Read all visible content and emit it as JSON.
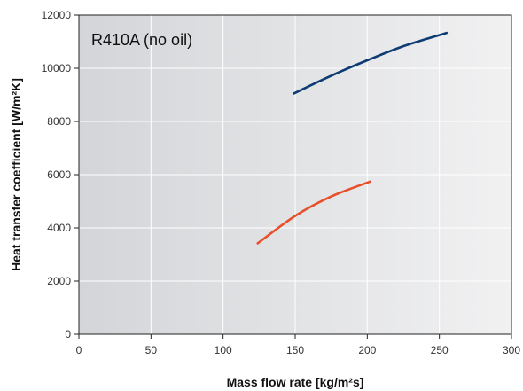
{
  "chart_data": {
    "type": "line",
    "title": "R410A (no oil)",
    "xlabel": "Mass flow rate [kg/m²s]",
    "ylabel": "Heat transfer coefficient [W/m²K]",
    "xlim": [
      0,
      300
    ],
    "ylim": [
      0,
      12000
    ],
    "xticks": [
      0,
      50,
      100,
      150,
      200,
      250,
      300
    ],
    "yticks": [
      0,
      2000,
      4000,
      6000,
      8000,
      10000,
      12000
    ],
    "grid": true,
    "background": "gradient dark-grey left to light-grey right",
    "series": [
      {
        "color": "#0d3b72",
        "x": [
          149,
          175,
          200,
          225,
          255
        ],
        "y": [
          9050,
          9720,
          10300,
          10830,
          11330
        ]
      },
      {
        "color": "#e8502b",
        "x": [
          124,
          150,
          175,
          202
        ],
        "y": [
          3420,
          4450,
          5180,
          5740
        ]
      }
    ]
  }
}
